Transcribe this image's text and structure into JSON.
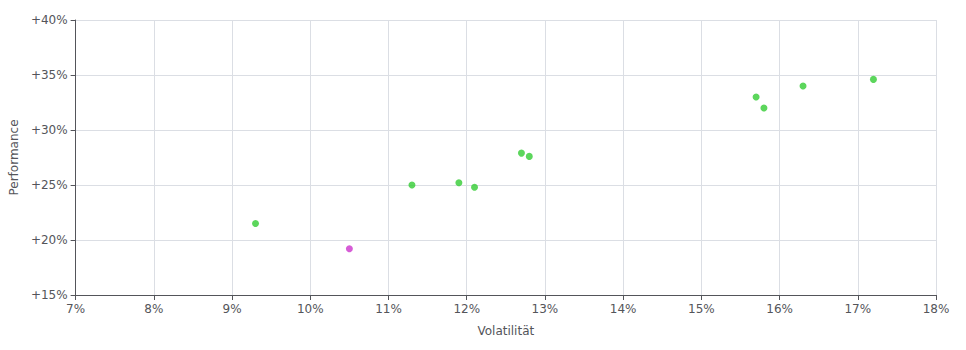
{
  "chart_data": {
    "type": "scatter",
    "xlabel": "Volatilität",
    "ylabel": "Performance",
    "xlim": [
      0.07,
      0.18
    ],
    "ylim": [
      0.15,
      0.4
    ],
    "xticks": [
      {
        "value": 0.07,
        "label": "7%"
      },
      {
        "value": 0.08,
        "label": "8%"
      },
      {
        "value": 0.09,
        "label": "9%"
      },
      {
        "value": 0.1,
        "label": "10%"
      },
      {
        "value": 0.11,
        "label": "11%"
      },
      {
        "value": 0.12,
        "label": "12%"
      },
      {
        "value": 0.13,
        "label": "13%"
      },
      {
        "value": 0.14,
        "label": "14%"
      },
      {
        "value": 0.15,
        "label": "15%"
      },
      {
        "value": 0.16,
        "label": "16%"
      },
      {
        "value": 0.17,
        "label": "17%"
      },
      {
        "value": 0.18,
        "label": "18%"
      }
    ],
    "yticks": [
      {
        "value": 0.15,
        "label": "+15%"
      },
      {
        "value": 0.2,
        "label": "+20%"
      },
      {
        "value": 0.25,
        "label": "+25%"
      },
      {
        "value": 0.3,
        "label": "+30%"
      },
      {
        "value": 0.35,
        "label": "+35%"
      },
      {
        "value": 0.4,
        "label": "+40%"
      }
    ],
    "grid": true,
    "series": [
      {
        "color": "#33cc33",
        "x": [
          0.093,
          0.113,
          0.119,
          0.121,
          0.127,
          0.128,
          0.157,
          0.158,
          0.163,
          0.172
        ],
        "values": [
          0.215,
          0.25,
          0.252,
          0.248,
          0.279,
          0.276,
          0.33,
          0.32,
          0.34,
          0.346
        ]
      },
      {
        "color": "#cc33cc",
        "x": [
          0.105
        ],
        "values": [
          0.192
        ]
      }
    ]
  }
}
